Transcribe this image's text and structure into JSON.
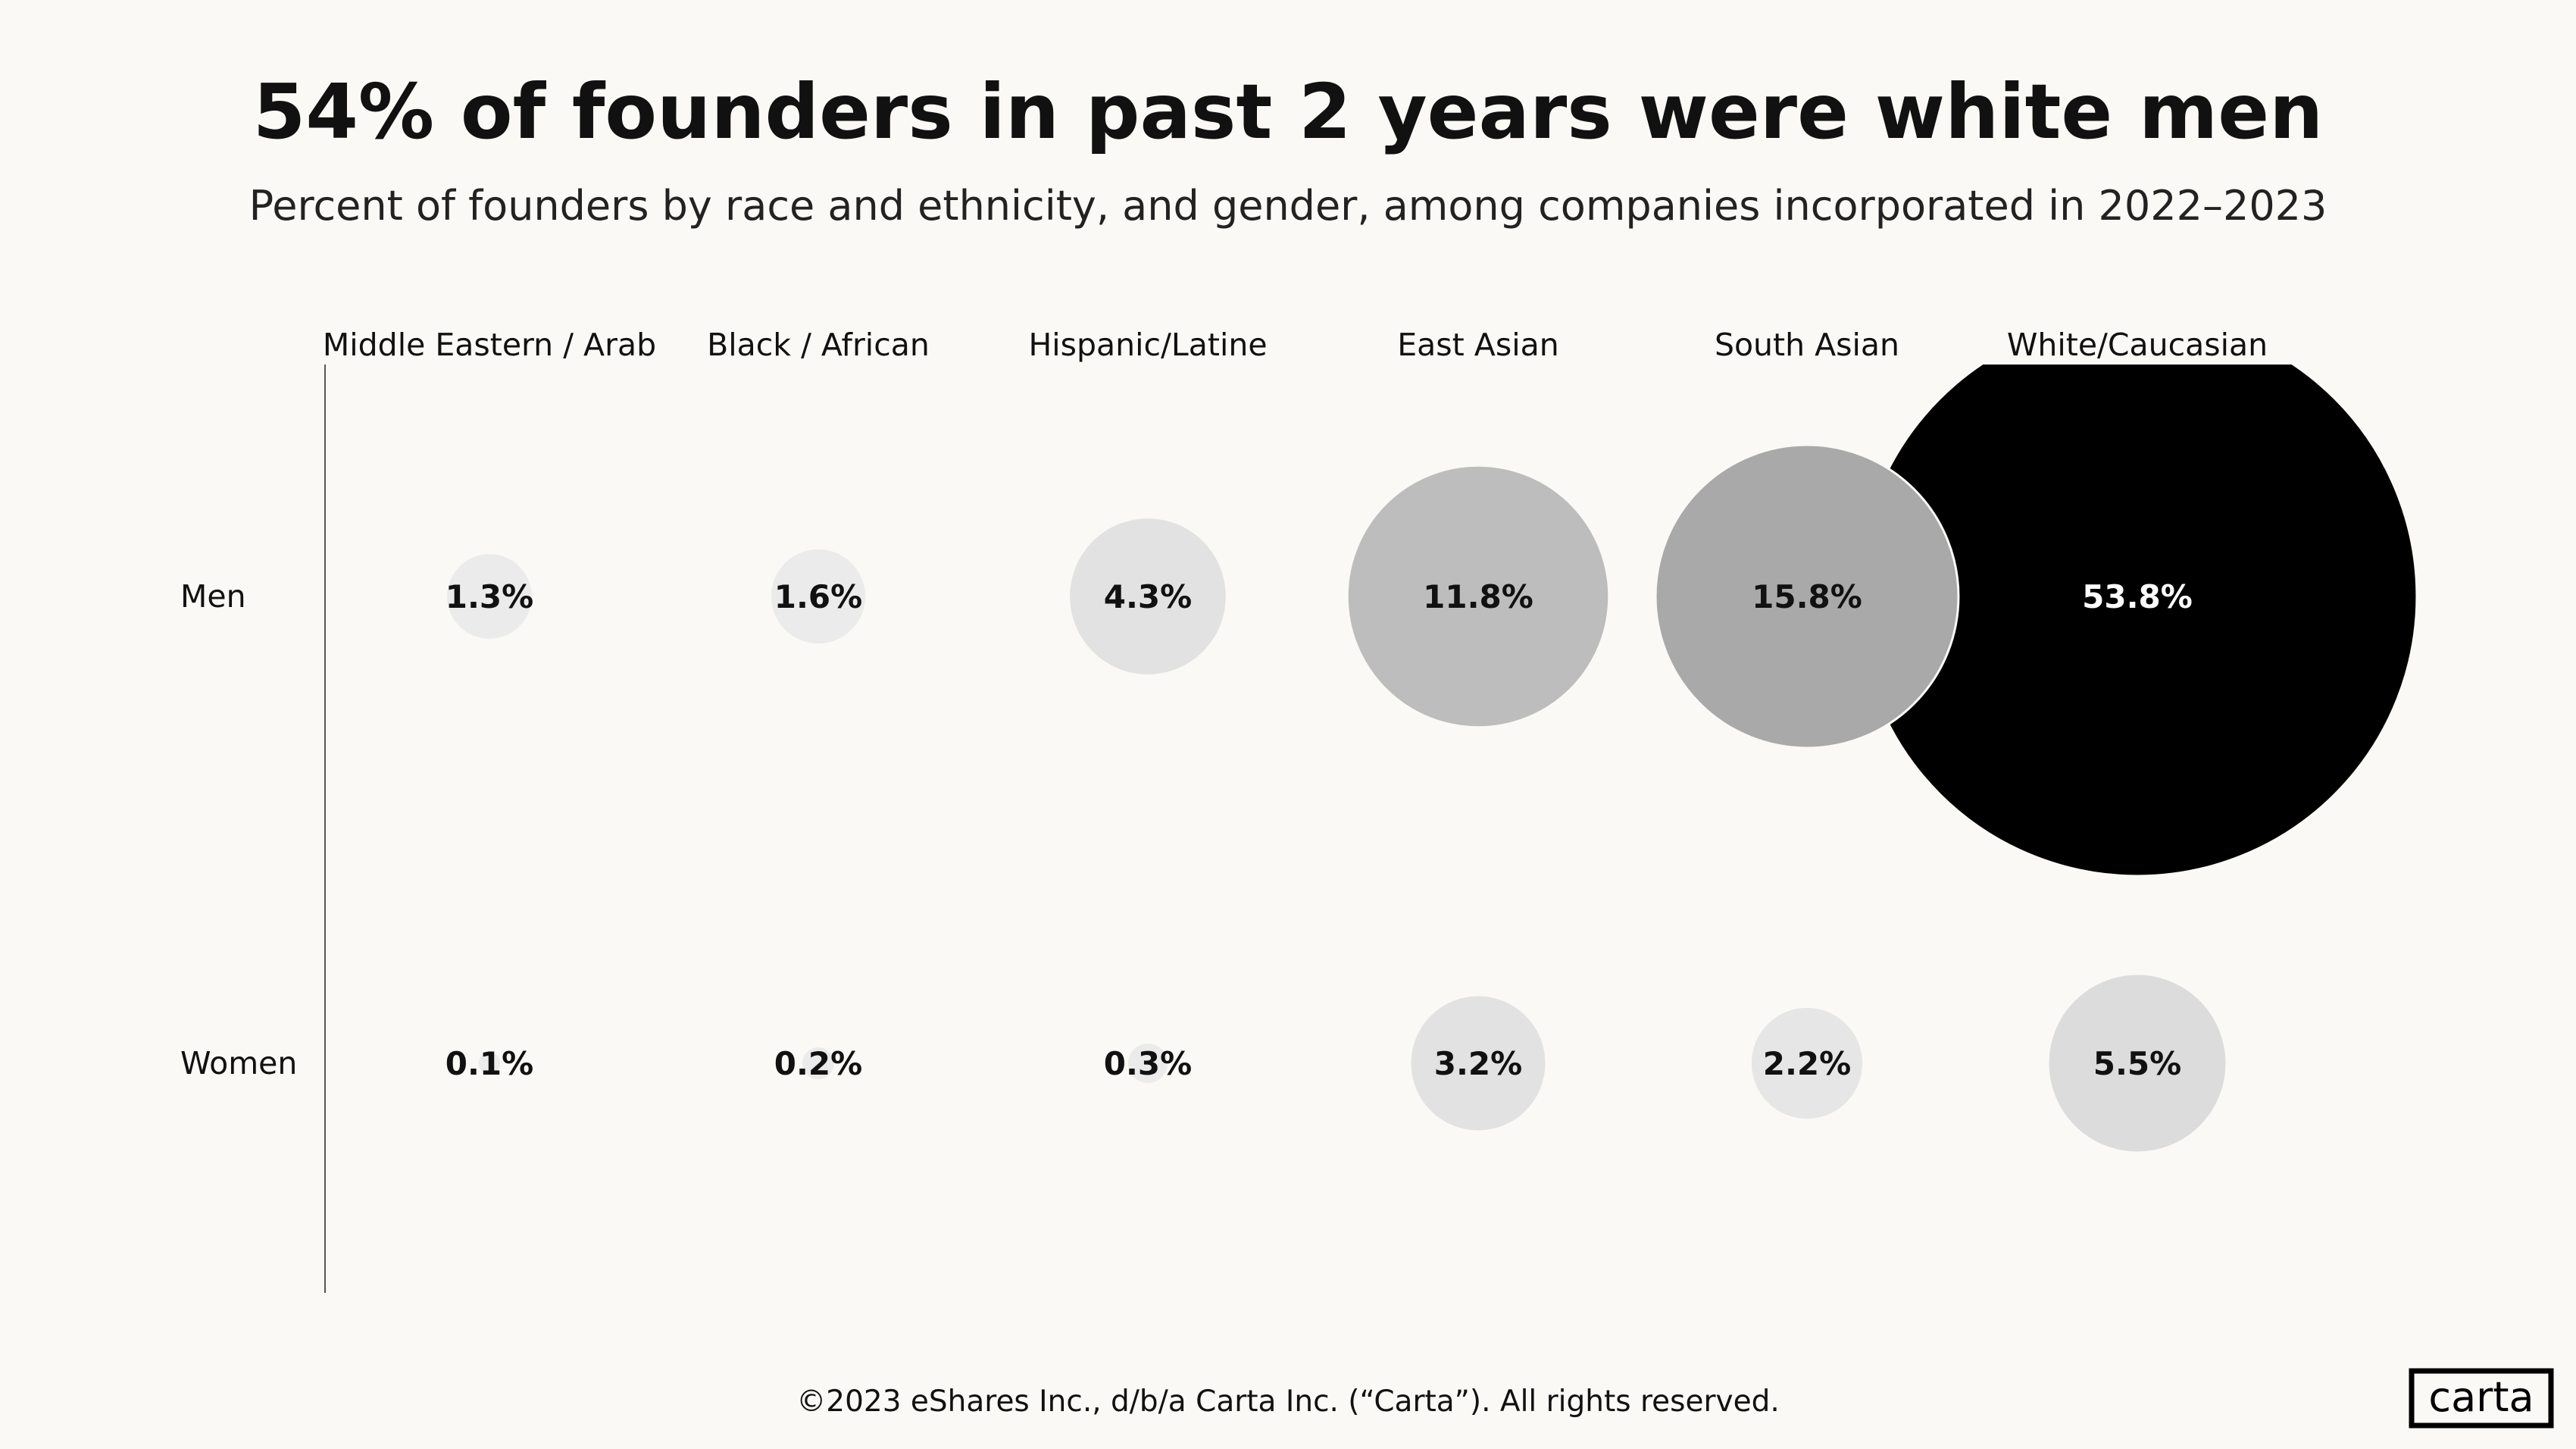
{
  "chart_data": {
    "type": "bubble",
    "title": "54% of founders in past 2 years were white men",
    "subtitle": "Percent of founders by race and ethnicity, and gender, among companies incorporated in 2022–2023",
    "categories": [
      "Middle Eastern / Arab",
      "Black / African",
      "Hispanic/Latine",
      "East Asian",
      "South Asian",
      "White/Caucasian"
    ],
    "rows": [
      "Men",
      "Women"
    ],
    "series": [
      {
        "name": "Men",
        "values": [
          1.3,
          1.6,
          4.3,
          11.8,
          15.8,
          53.8
        ],
        "labels": [
          "1.3%",
          "1.6%",
          "4.3%",
          "11.8%",
          "15.8%",
          "53.8%"
        ],
        "colors": [
          "#ebebeb",
          "#ebebeb",
          "#e2e2e2",
          "#bdbdbd",
          "#a9a9a9",
          "#000000"
        ]
      },
      {
        "name": "Women",
        "values": [
          0.1,
          0.2,
          0.3,
          3.2,
          2.2,
          5.5
        ],
        "labels": [
          "0.1%",
          "0.2%",
          "0.3%",
          "3.2%",
          "2.2%",
          "5.5%"
        ],
        "colors": [
          "#ebebeb",
          "#ebebeb",
          "#ebebeb",
          "#e2e2e2",
          "#e6e6e6",
          "#dcdcdc"
        ]
      }
    ],
    "size_encoding": "area"
  },
  "footer": "©2023 eShares Inc., d/b/a Carta Inc. (“Carta”). All rights reserved.",
  "logo": "carta",
  "colors": {
    "background": "#fbf9f5",
    "text": "#111111"
  }
}
